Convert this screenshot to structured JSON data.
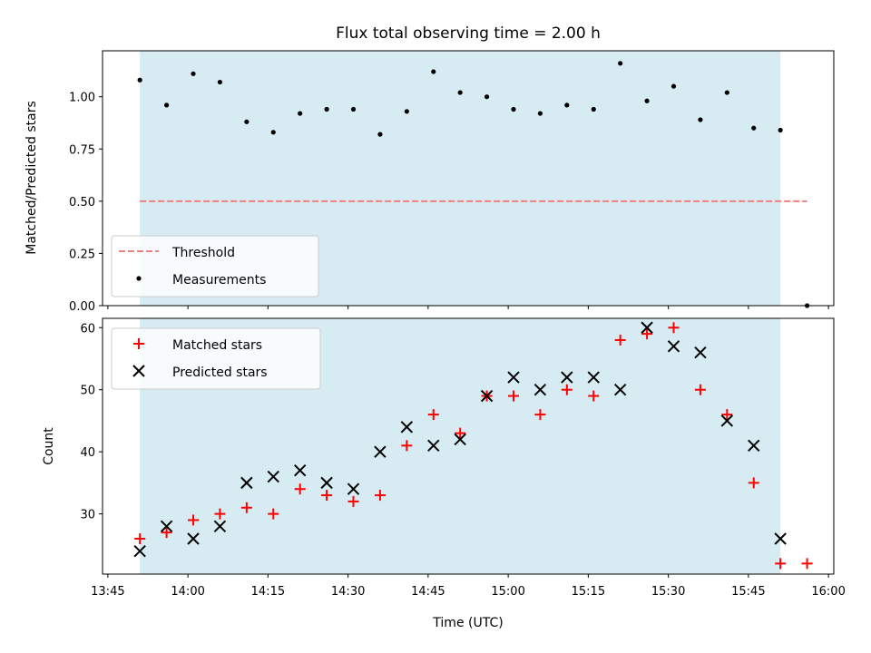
{
  "chart_data": [
    {
      "type": "scatter",
      "panel": "top",
      "title": "Flux total observing time = 2.00 h",
      "xlabel": "",
      "ylabel": "Matched/Predicted stars",
      "xlim": [
        "13:44",
        "16:01"
      ],
      "ylim": [
        0,
        1.22
      ],
      "yticks": [
        "0.00",
        "0.25",
        "0.50",
        "0.75",
        "1.00"
      ],
      "shaded_region": {
        "from": "13:51",
        "to": "15:51",
        "color": "#add8e6"
      },
      "legend_position": "lower-left",
      "series": [
        {
          "name": "Threshold",
          "style": "dashed-line",
          "color": "#f08080",
          "x": [
            "13:51",
            "15:56"
          ],
          "y": [
            0.5,
            0.5
          ]
        },
        {
          "name": "Measurements",
          "style": "dot",
          "color": "#000000",
          "x": [
            "13:51",
            "13:56",
            "14:01",
            "14:06",
            "14:11",
            "14:16",
            "14:21",
            "14:26",
            "14:31",
            "14:36",
            "14:41",
            "14:46",
            "14:51",
            "14:56",
            "15:01",
            "15:06",
            "15:11",
            "15:16",
            "15:21",
            "15:26",
            "15:31",
            "15:36",
            "15:41",
            "15:46",
            "15:51",
            "15:56"
          ],
          "y": [
            1.08,
            0.96,
            1.11,
            1.07,
            0.88,
            0.83,
            0.92,
            0.94,
            0.94,
            0.82,
            0.93,
            1.12,
            1.02,
            1.0,
            0.94,
            0.92,
            0.96,
            0.94,
            1.16,
            0.98,
            1.05,
            0.89,
            1.02,
            0.85,
            0.84,
            0.0
          ]
        }
      ]
    },
    {
      "type": "scatter",
      "panel": "bottom",
      "title": "",
      "xlabel": "Time (UTC)",
      "ylabel": "Count",
      "xlim": [
        "13:44",
        "16:01"
      ],
      "xticks": [
        "13:45",
        "14:00",
        "14:15",
        "14:30",
        "14:45",
        "15:00",
        "15:15",
        "15:30",
        "15:45",
        "16:00"
      ],
      "ylim": [
        20.3,
        61.5
      ],
      "yticks": [
        "30",
        "40",
        "50",
        "60"
      ],
      "shaded_region": {
        "from": "13:51",
        "to": "15:51",
        "color": "#add8e6"
      },
      "legend_position": "upper-left",
      "series": [
        {
          "name": "Matched stars",
          "marker": "plus",
          "color": "#ff0000",
          "x": [
            "13:51",
            "13:56",
            "14:01",
            "14:06",
            "14:11",
            "14:16",
            "14:21",
            "14:26",
            "14:31",
            "14:36",
            "14:41",
            "14:46",
            "14:51",
            "14:56",
            "15:01",
            "15:06",
            "15:11",
            "15:16",
            "15:21",
            "15:26",
            "15:31",
            "15:36",
            "15:41",
            "15:46",
            "15:51",
            "15:56"
          ],
          "y": [
            26,
            27,
            29,
            30,
            31,
            30,
            34,
            33,
            32,
            33,
            41,
            46,
            43,
            49,
            49,
            46,
            50,
            49,
            58,
            59,
            60,
            50,
            46,
            35,
            22,
            22
          ]
        },
        {
          "name": "Predicted stars",
          "marker": "x",
          "color": "#000000",
          "x": [
            "13:51",
            "13:56",
            "14:01",
            "14:06",
            "14:11",
            "14:16",
            "14:21",
            "14:26",
            "14:31",
            "14:36",
            "14:41",
            "14:46",
            "14:51",
            "14:56",
            "15:01",
            "15:06",
            "15:11",
            "15:16",
            "15:21",
            "15:26",
            "15:31",
            "15:36",
            "15:41",
            "15:46",
            "15:51"
          ],
          "y": [
            24,
            28,
            26,
            28,
            35,
            36,
            37,
            35,
            34,
            40,
            44,
            41,
            42,
            49,
            52,
            50,
            52,
            52,
            50,
            60,
            57,
            56,
            45,
            41,
            26
          ]
        }
      ]
    }
  ]
}
